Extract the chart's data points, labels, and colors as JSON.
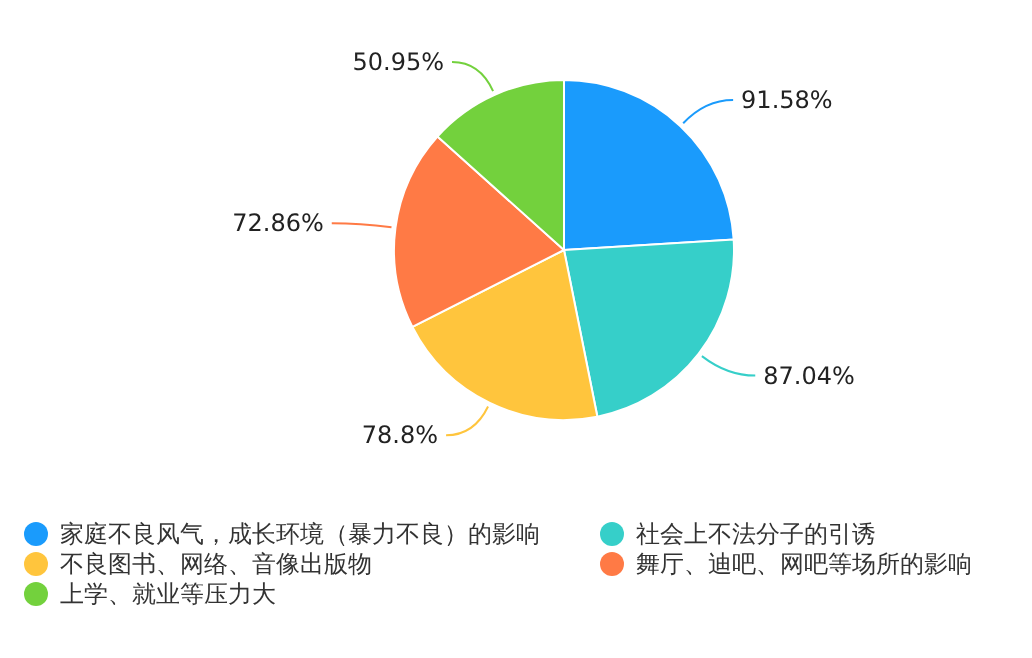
{
  "chart_data": {
    "type": "pie",
    "categories": [
      "家庭不良风气，成长环境（暴力不良）的影响",
      "社会上不法分子的引诱",
      "不良图书、网络、音像出版物",
      "舞厅、迪吧、网吧等场所的影响",
      "上学、就业等压力大"
    ],
    "values": [
      91.58,
      87.04,
      78.8,
      72.86,
      50.95
    ],
    "value_labels": [
      "91.58%",
      "87.04%",
      "78.8%",
      "72.86%",
      "50.95%"
    ],
    "colors": [
      "#1a9bfc",
      "#36cfc9",
      "#ffc53d",
      "#ff7a45",
      "#73d13d"
    ],
    "legend": "bottom"
  }
}
